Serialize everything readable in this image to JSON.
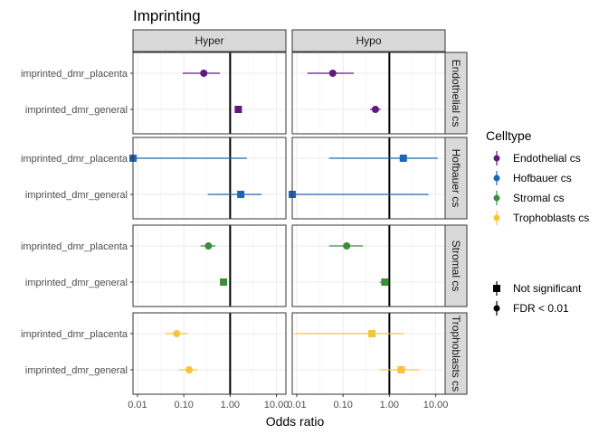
{
  "chart_data": {
    "type": "forest",
    "title": "Imprinting",
    "xlabel": "Odds ratio",
    "ylabel": "",
    "x_scale": "log10",
    "xlim": [
      0.008,
      16
    ],
    "x_ticks": [
      0.01,
      0.1,
      1,
      10
    ],
    "x_tick_labels": [
      "0.01",
      "0.10",
      "1.00",
      "10.00"
    ],
    "reference_line": 1,
    "columns": [
      "Hyper",
      "Hypo"
    ],
    "rows": [
      "Endothelial cs",
      "Hofbauer cs",
      "Stromal cs",
      "Trophoblasts cs"
    ],
    "categories": [
      "imprinted_dmr_placenta",
      "imprinted_dmr_general"
    ],
    "grid": true,
    "legend": {
      "position": "right",
      "color_title": "Celltype",
      "color_entries": [
        {
          "name": "Endothelial cs",
          "color": "#5e1a7e"
        },
        {
          "name": "Hofbauer cs",
          "color": "#1f66b0"
        },
        {
          "name": "Stromal cs",
          "color": "#3a8e3a"
        },
        {
          "name": "Trophoblasts cs",
          "color": "#f9c23c"
        }
      ],
      "shape_entries": [
        {
          "name": "Not significant",
          "shape": "square"
        },
        {
          "name": "FDR < 0.01",
          "shape": "circle"
        }
      ]
    },
    "series": [
      {
        "name": "Endothelial cs",
        "column": "Hyper",
        "category": "imprinted_dmr_placenta",
        "or": 0.27,
        "lo": 0.095,
        "hi": 0.6,
        "significant": true
      },
      {
        "name": "Endothelial cs",
        "column": "Hyper",
        "category": "imprinted_dmr_general",
        "or": 1.5,
        "lo": 1.3,
        "hi": 1.75,
        "significant": false
      },
      {
        "name": "Endothelial cs",
        "column": "Hypo",
        "category": "imprinted_dmr_placenta",
        "or": 0.06,
        "lo": 0.017,
        "hi": 0.17,
        "significant": true
      },
      {
        "name": "Endothelial cs",
        "column": "Hypo",
        "category": "imprinted_dmr_general",
        "or": 0.5,
        "lo": 0.38,
        "hi": 0.65,
        "significant": true
      },
      {
        "name": "Hofbauer cs",
        "column": "Hyper",
        "category": "imprinted_dmr_placenta",
        "or": 0.008,
        "lo": 0.008,
        "hi": 2.3,
        "significant": false
      },
      {
        "name": "Hofbauer cs",
        "column": "Hyper",
        "category": "imprinted_dmr_general",
        "or": 1.7,
        "lo": 0.33,
        "hi": 4.8,
        "significant": false
      },
      {
        "name": "Hofbauer cs",
        "column": "Hypo",
        "category": "imprinted_dmr_placenta",
        "or": 2.0,
        "lo": 0.05,
        "hi": 11,
        "significant": false
      },
      {
        "name": "Hofbauer cs",
        "column": "Hypo",
        "category": "imprinted_dmr_general",
        "or": 0.008,
        "lo": 0.008,
        "hi": 7.0,
        "significant": false
      },
      {
        "name": "Stromal cs",
        "column": "Hyper",
        "category": "imprinted_dmr_placenta",
        "or": 0.34,
        "lo": 0.23,
        "hi": 0.48,
        "significant": true
      },
      {
        "name": "Stromal cs",
        "column": "Hyper",
        "category": "imprinted_dmr_general",
        "or": 0.72,
        "lo": 0.62,
        "hi": 0.82,
        "significant": false
      },
      {
        "name": "Stromal cs",
        "column": "Hypo",
        "category": "imprinted_dmr_placenta",
        "or": 0.12,
        "lo": 0.05,
        "hi": 0.27,
        "significant": true
      },
      {
        "name": "Stromal cs",
        "column": "Hypo",
        "category": "imprinted_dmr_general",
        "or": 0.8,
        "lo": 0.62,
        "hi": 0.98,
        "significant": false
      },
      {
        "name": "Trophoblasts cs",
        "column": "Hyper",
        "category": "imprinted_dmr_placenta",
        "or": 0.07,
        "lo": 0.04,
        "hi": 0.12,
        "significant": true
      },
      {
        "name": "Trophoblasts cs",
        "column": "Hyper",
        "category": "imprinted_dmr_general",
        "or": 0.13,
        "lo": 0.08,
        "hi": 0.2,
        "significant": true
      },
      {
        "name": "Trophoblasts cs",
        "column": "Hypo",
        "category": "imprinted_dmr_placenta",
        "or": 0.42,
        "lo": 0.009,
        "hi": 2.1,
        "significant": false
      },
      {
        "name": "Trophoblasts cs",
        "column": "Hypo",
        "category": "imprinted_dmr_general",
        "or": 1.8,
        "lo": 0.62,
        "hi": 4.4,
        "significant": false
      }
    ]
  }
}
